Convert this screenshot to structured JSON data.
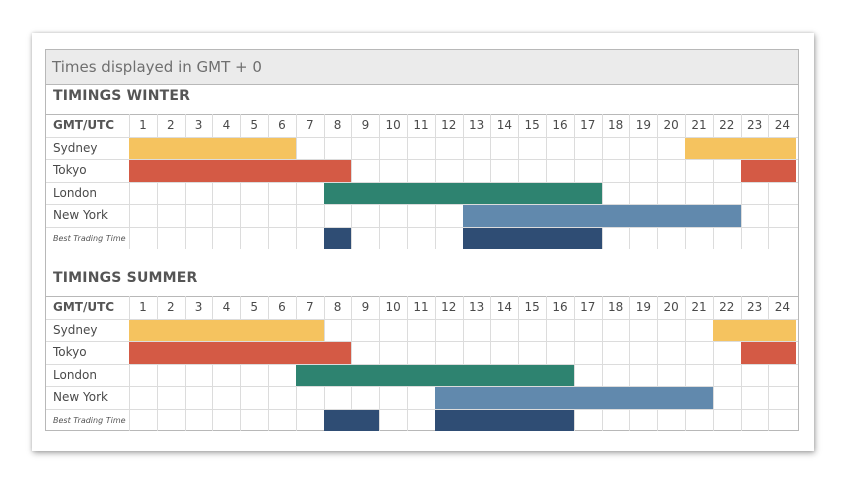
{
  "header": "Times displayed in GMT + 0",
  "row_header": "GMT/UTC",
  "hours": [
    "1",
    "2",
    "3",
    "4",
    "5",
    "6",
    "7",
    "8",
    "9",
    "10",
    "11",
    "12",
    "13",
    "14",
    "15",
    "16",
    "17",
    "18",
    "19",
    "20",
    "21",
    "22",
    "23",
    "24"
  ],
  "colors": {
    "Sydney": "#f5c35f",
    "Tokyo": "#d45a45",
    "London": "#2e8370",
    "New York": "#6189ad",
    "Best Trading Time": "#2f4d74"
  },
  "chart_data": [
    {
      "type": "table",
      "title": "TIMINGS WINTER",
      "rows": [
        {
          "label": "Sydney",
          "sessions": [
            [
              21,
              24
            ],
            [
              1,
              6
            ]
          ]
        },
        {
          "label": "Tokyo",
          "sessions": [
            [
              23,
              24
            ],
            [
              1,
              8
            ]
          ]
        },
        {
          "label": "London",
          "sessions": [
            [
              8,
              17
            ]
          ]
        },
        {
          "label": "New York",
          "sessions": [
            [
              13,
              22
            ]
          ]
        },
        {
          "label": "Best Trading Time",
          "sessions": [
            [
              8,
              8
            ],
            [
              13,
              17
            ]
          ]
        }
      ]
    },
    {
      "type": "table",
      "title": "TIMINGS SUMMER",
      "rows": [
        {
          "label": "Sydney",
          "sessions": [
            [
              22,
              24
            ],
            [
              1,
              7
            ]
          ]
        },
        {
          "label": "Tokyo",
          "sessions": [
            [
              23,
              24
            ],
            [
              1,
              8
            ]
          ]
        },
        {
          "label": "London",
          "sessions": [
            [
              7,
              16
            ]
          ]
        },
        {
          "label": "New York",
          "sessions": [
            [
              12,
              21
            ]
          ]
        },
        {
          "label": "Best Trading Time",
          "sessions": [
            [
              8,
              9
            ],
            [
              12,
              16
            ]
          ]
        }
      ]
    }
  ]
}
